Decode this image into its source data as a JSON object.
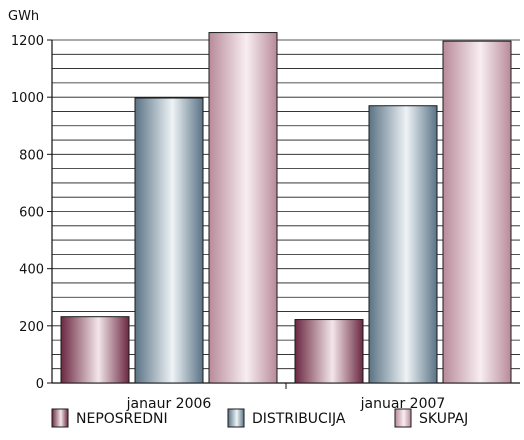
{
  "chart_data": {
    "type": "bar",
    "unit_label": "GWh",
    "categories": [
      "janaur 2006",
      "januar 2007"
    ],
    "series": [
      {
        "name": "NEPOSREDNI",
        "values": [
          232,
          222
        ]
      },
      {
        "name": "DISTRIBUCIJA",
        "values": [
          997,
          970
        ]
      },
      {
        "name": "SKUPAJ",
        "values": [
          1226,
          1196
        ]
      }
    ],
    "ylim": [
      0,
      1200
    ],
    "yticks": [
      0,
      200,
      400,
      600,
      800,
      1000,
      1200
    ],
    "grid": true,
    "legend_placement": "bottom",
    "colors": {
      "NEPOSREDNI": {
        "dark": "#6b2840",
        "light": "#f3e6ea"
      },
      "DISTRIBUCIJA": {
        "dark": "#5a7386",
        "light": "#eef3f6"
      },
      "SKUPAJ": {
        "dark": "#b88a9a",
        "light": "#f8eef1"
      }
    }
  }
}
